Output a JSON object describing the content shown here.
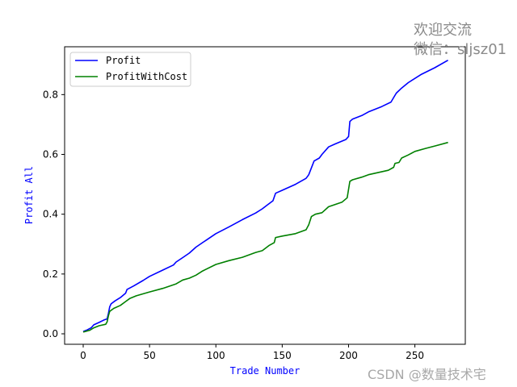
{
  "chart_data": {
    "type": "line",
    "title": "",
    "xlabel": "Trade Number",
    "ylabel": "Profit All",
    "xlim": [
      -14,
      288
    ],
    "ylim": [
      -0.035,
      0.96
    ],
    "xticks": [
      0,
      50,
      100,
      150,
      200,
      250
    ],
    "yticks": [
      0.0,
      0.2,
      0.4,
      0.6,
      0.8
    ],
    "grid": false,
    "legend": "upper-left",
    "label_color": "#0000ff",
    "series": [
      {
        "name": "Profit",
        "color": "#0000ff",
        "points": [
          [
            0,
            0.008
          ],
          [
            3,
            0.013
          ],
          [
            6,
            0.02
          ],
          [
            8,
            0.03
          ],
          [
            12,
            0.038
          ],
          [
            16,
            0.047
          ],
          [
            18,
            0.05
          ],
          [
            19,
            0.068
          ],
          [
            20,
            0.09
          ],
          [
            21,
            0.1
          ],
          [
            24,
            0.11
          ],
          [
            28,
            0.121
          ],
          [
            32,
            0.136
          ],
          [
            33,
            0.148
          ],
          [
            38,
            0.16
          ],
          [
            45,
            0.178
          ],
          [
            50,
            0.192
          ],
          [
            60,
            0.213
          ],
          [
            68,
            0.23
          ],
          [
            70,
            0.24
          ],
          [
            75,
            0.255
          ],
          [
            80,
            0.27
          ],
          [
            85,
            0.29
          ],
          [
            90,
            0.305
          ],
          [
            100,
            0.335
          ],
          [
            110,
            0.358
          ],
          [
            120,
            0.382
          ],
          [
            130,
            0.404
          ],
          [
            135,
            0.418
          ],
          [
            140,
            0.435
          ],
          [
            143,
            0.445
          ],
          [
            145,
            0.47
          ],
          [
            150,
            0.48
          ],
          [
            160,
            0.5
          ],
          [
            168,
            0.52
          ],
          [
            170,
            0.532
          ],
          [
            172,
            0.555
          ],
          [
            174,
            0.578
          ],
          [
            178,
            0.588
          ],
          [
            180,
            0.6
          ],
          [
            185,
            0.625
          ],
          [
            190,
            0.635
          ],
          [
            198,
            0.65
          ],
          [
            200,
            0.66
          ],
          [
            201,
            0.71
          ],
          [
            203,
            0.718
          ],
          [
            210,
            0.73
          ],
          [
            215,
            0.742
          ],
          [
            225,
            0.76
          ],
          [
            232,
            0.775
          ],
          [
            234,
            0.79
          ],
          [
            236,
            0.805
          ],
          [
            240,
            0.822
          ],
          [
            245,
            0.84
          ],
          [
            255,
            0.868
          ],
          [
            265,
            0.89
          ],
          [
            275,
            0.915
          ]
        ]
      },
      {
        "name": "ProfitWithCost",
        "color": "#008000",
        "points": [
          [
            0,
            0.006
          ],
          [
            5,
            0.012
          ],
          [
            8,
            0.02
          ],
          [
            12,
            0.027
          ],
          [
            17,
            0.032
          ],
          [
            18,
            0.04
          ],
          [
            19,
            0.06
          ],
          [
            20,
            0.075
          ],
          [
            23,
            0.085
          ],
          [
            28,
            0.095
          ],
          [
            32,
            0.108
          ],
          [
            35,
            0.118
          ],
          [
            40,
            0.127
          ],
          [
            50,
            0.14
          ],
          [
            60,
            0.152
          ],
          [
            70,
            0.167
          ],
          [
            75,
            0.18
          ],
          [
            80,
            0.186
          ],
          [
            85,
            0.196
          ],
          [
            90,
            0.21
          ],
          [
            100,
            0.232
          ],
          [
            110,
            0.245
          ],
          [
            120,
            0.256
          ],
          [
            130,
            0.272
          ],
          [
            135,
            0.278
          ],
          [
            140,
            0.295
          ],
          [
            144,
            0.305
          ],
          [
            145,
            0.322
          ],
          [
            150,
            0.327
          ],
          [
            160,
            0.335
          ],
          [
            168,
            0.348
          ],
          [
            170,
            0.365
          ],
          [
            172,
            0.392
          ],
          [
            175,
            0.4
          ],
          [
            180,
            0.405
          ],
          [
            185,
            0.425
          ],
          [
            195,
            0.44
          ],
          [
            199,
            0.455
          ],
          [
            201,
            0.51
          ],
          [
            203,
            0.515
          ],
          [
            210,
            0.524
          ],
          [
            215,
            0.532
          ],
          [
            230,
            0.547
          ],
          [
            234,
            0.557
          ],
          [
            235,
            0.57
          ],
          [
            238,
            0.573
          ],
          [
            240,
            0.588
          ],
          [
            245,
            0.598
          ],
          [
            250,
            0.61
          ],
          [
            258,
            0.62
          ],
          [
            265,
            0.628
          ],
          [
            275,
            0.64
          ]
        ]
      }
    ]
  },
  "watermark": {
    "line1": "欢迎交流",
    "line2": "微信：sljsz01",
    "bottom": "CSDN @数量技术宅"
  }
}
